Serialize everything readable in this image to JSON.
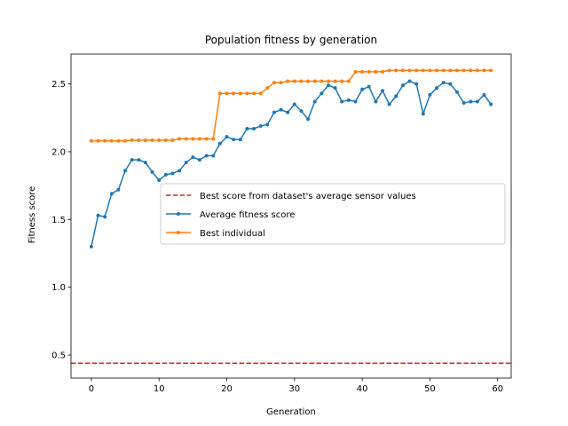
{
  "chart_data": {
    "type": "line",
    "title": "Population fitness by generation",
    "xlabel": "Generation",
    "ylabel": "Fitness score",
    "xlim": [
      -3,
      62
    ],
    "ylim": [
      0.33,
      2.72
    ],
    "xticks": [
      0,
      10,
      20,
      30,
      40,
      50,
      60
    ],
    "yticks": [
      0.5,
      1.0,
      1.5,
      2.0,
      2.5
    ],
    "xtick_labels": [
      "0",
      "10",
      "20",
      "30",
      "40",
      "50",
      "60"
    ],
    "ytick_labels": [
      "0.5",
      "1.0",
      "1.5",
      "2.0",
      "2.5"
    ],
    "grid": false,
    "legend_position": "center-right",
    "reference_line": {
      "name": "Best score from dataset's average sensor values",
      "y": 0.44,
      "color": "#d62728",
      "style": "dashed"
    },
    "series": [
      {
        "name": "Average fitness score",
        "color": "#1f77b4",
        "marker": "circle",
        "x": [
          0,
          1,
          2,
          3,
          4,
          5,
          6,
          7,
          8,
          9,
          10,
          11,
          12,
          13,
          14,
          15,
          16,
          17,
          18,
          19,
          20,
          21,
          22,
          23,
          24,
          25,
          26,
          27,
          28,
          29,
          30,
          31,
          32,
          33,
          34,
          35,
          36,
          37,
          38,
          39,
          40,
          41,
          42,
          43,
          44,
          45,
          46,
          47,
          48,
          49,
          50,
          51,
          52,
          53,
          54,
          55,
          56,
          57,
          58,
          59
        ],
        "values": [
          1.3,
          1.53,
          1.52,
          1.69,
          1.72,
          1.86,
          1.94,
          1.94,
          1.92,
          1.85,
          1.79,
          1.83,
          1.84,
          1.86,
          1.92,
          1.96,
          1.94,
          1.97,
          1.97,
          2.06,
          2.11,
          2.09,
          2.09,
          2.17,
          2.17,
          2.19,
          2.2,
          2.29,
          2.31,
          2.29,
          2.35,
          2.3,
          2.24,
          2.37,
          2.43,
          2.49,
          2.47,
          2.37,
          2.38,
          2.37,
          2.46,
          2.48,
          2.37,
          2.45,
          2.35,
          2.41,
          2.49,
          2.52,
          2.5,
          2.28,
          2.42,
          2.47,
          2.51,
          2.5,
          2.44,
          2.36,
          2.37,
          2.37,
          2.42,
          2.35
        ]
      },
      {
        "name": "Best individual",
        "color": "#ff7f0e",
        "marker": "circle",
        "x": [
          0,
          1,
          2,
          3,
          4,
          5,
          6,
          7,
          8,
          9,
          10,
          11,
          12,
          13,
          14,
          15,
          16,
          17,
          18,
          19,
          20,
          21,
          22,
          23,
          24,
          25,
          26,
          27,
          28,
          29,
          30,
          31,
          32,
          33,
          34,
          35,
          36,
          37,
          38,
          39,
          40,
          41,
          42,
          43,
          44,
          45,
          46,
          47,
          48,
          49,
          50,
          51,
          52,
          53,
          54,
          55,
          56,
          57,
          58,
          59
        ],
        "values": [
          2.08,
          2.08,
          2.08,
          2.08,
          2.08,
          2.08,
          2.085,
          2.085,
          2.085,
          2.085,
          2.085,
          2.085,
          2.085,
          2.095,
          2.095,
          2.095,
          2.095,
          2.095,
          2.095,
          2.43,
          2.43,
          2.43,
          2.43,
          2.43,
          2.43,
          2.43,
          2.47,
          2.51,
          2.51,
          2.52,
          2.52,
          2.52,
          2.52,
          2.52,
          2.52,
          2.52,
          2.52,
          2.52,
          2.52,
          2.59,
          2.59,
          2.59,
          2.59,
          2.59,
          2.6,
          2.6,
          2.6,
          2.6,
          2.6,
          2.6,
          2.6,
          2.6,
          2.6,
          2.6,
          2.6,
          2.6,
          2.6,
          2.6,
          2.6,
          2.6
        ]
      }
    ]
  }
}
